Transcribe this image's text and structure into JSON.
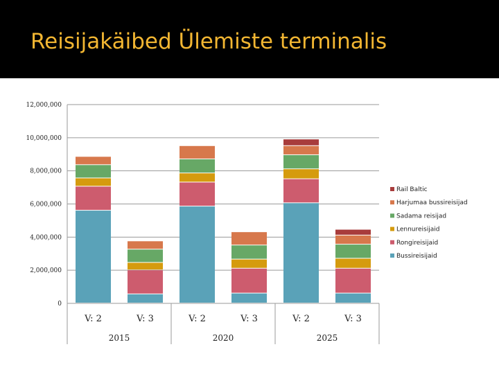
{
  "title": "Reisijakäibed Ülemiste terminalis",
  "chart_data": {
    "type": "bar",
    "stacked": true,
    "title": "",
    "xlabel": "",
    "ylabel": "",
    "ylim": [
      0,
      12000000
    ],
    "yticks": [
      0,
      2000000,
      4000000,
      6000000,
      8000000,
      10000000,
      12000000
    ],
    "ytick_labels": [
      "0",
      "2,000,000",
      "4,000,000",
      "6,000,000",
      "8,000,000",
      "10,000,000",
      "12,000,000"
    ],
    "categories": [
      "V: 2",
      "V: 3",
      "V: 2",
      "V: 3",
      "V: 2",
      "V: 3"
    ],
    "groups": [
      "2015",
      "2020",
      "2025"
    ],
    "grid": true,
    "legend_position": "right",
    "series": [
      {
        "name": "Bussireisijaid",
        "color": "#5aa2b8",
        "values": [
          5600000,
          550000,
          5850000,
          600000,
          6050000,
          600000
        ]
      },
      {
        "name": "Rongireisijaid",
        "color": "#cd5c6e",
        "values": [
          1450000,
          1450000,
          1450000,
          1500000,
          1450000,
          1500000
        ]
      },
      {
        "name": "Lennureisijaid",
        "color": "#d59b0e",
        "values": [
          500000,
          450000,
          550000,
          550000,
          600000,
          600000
        ]
      },
      {
        "name": "Sadama reisijad",
        "color": "#67a866",
        "values": [
          800000,
          800000,
          850000,
          850000,
          850000,
          850000
        ]
      },
      {
        "name": "Harjumaa bussireisijad",
        "color": "#d7784c",
        "values": [
          500000,
          500000,
          800000,
          800000,
          550000,
          550000
        ]
      },
      {
        "name": "Rail Baltic",
        "color": "#a83c3c",
        "values": [
          0,
          0,
          0,
          0,
          400000,
          350000
        ]
      }
    ]
  }
}
